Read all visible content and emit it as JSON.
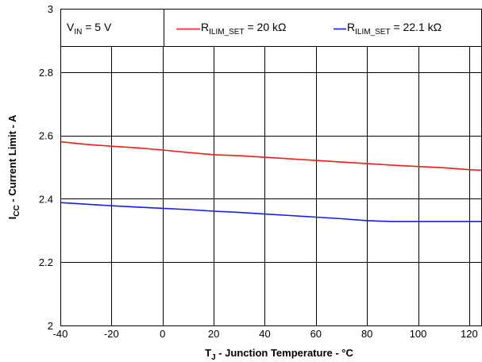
{
  "chart_data": {
    "type": "line",
    "xlabel": {
      "main": "T",
      "sub": "J",
      "rest": " - Junction Temperature - °C"
    },
    "ylabel": {
      "main": "I",
      "sub": "CC",
      "rest": " - Current Limit - A"
    },
    "xlim": [
      -40,
      125
    ],
    "ylim": [
      2,
      3
    ],
    "xticks": [
      -40,
      -20,
      0,
      20,
      40,
      60,
      80,
      100,
      120
    ],
    "yticks": [
      2,
      2.2,
      2.4,
      2.6,
      2.8,
      3
    ],
    "xtick_labels": [
      "-40",
      "-20",
      "0",
      "20",
      "40",
      "60",
      "80",
      "100",
      "120"
    ],
    "ytick_labels": [
      "2",
      "2.2",
      "2.4",
      "2.6",
      "2.8",
      "3"
    ],
    "grid": true,
    "annotation": {
      "main": "V",
      "sub": "IN",
      "rest": " = 5 V"
    },
    "legend_position": "top",
    "series": [
      {
        "name": {
          "main": "R",
          "sub": "ILIM_SET",
          "rest": " = 20 kΩ"
        },
        "color": "#ff1a1a",
        "x": [
          -40,
          -30,
          -20,
          -10,
          0,
          10,
          20,
          30,
          40,
          50,
          60,
          70,
          80,
          90,
          100,
          110,
          120,
          125
        ],
        "y": [
          2.58,
          2.572,
          2.566,
          2.561,
          2.554,
          2.546,
          2.539,
          2.536,
          2.531,
          2.526,
          2.521,
          2.516,
          2.511,
          2.506,
          2.502,
          2.498,
          2.492,
          2.49
        ]
      },
      {
        "name": {
          "main": "R",
          "sub": "ILIM_SET",
          "rest": " = 22.1 kΩ"
        },
        "color": "#1a1aff",
        "x": [
          -40,
          -30,
          -20,
          -10,
          0,
          10,
          20,
          30,
          40,
          50,
          60,
          70,
          80,
          90,
          100,
          110,
          120,
          125
        ],
        "y": [
          2.388,
          2.383,
          2.378,
          2.374,
          2.37,
          2.366,
          2.361,
          2.357,
          2.352,
          2.347,
          2.342,
          2.337,
          2.331,
          2.328,
          2.328,
          2.328,
          2.328,
          2.328
        ]
      }
    ]
  }
}
